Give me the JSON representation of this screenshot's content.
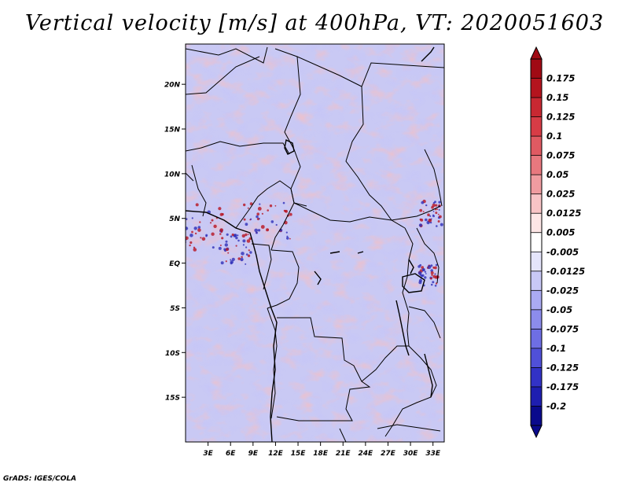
{
  "title": "Vertical velocity [m/s] at 400hPa, VT: 2020051603",
  "footer": "GrADS: IGES/COLA",
  "map": {
    "lat_labels": [
      "20N",
      "15N",
      "10N",
      "5N",
      "EQ",
      "5S",
      "10S",
      "15S"
    ],
    "lat_values": [
      20,
      15,
      10,
      5,
      0,
      -5,
      -10,
      -15
    ],
    "lon_labels": [
      "3E",
      "6E",
      "9E",
      "12E",
      "15E",
      "18E",
      "21E",
      "24E",
      "27E",
      "30E",
      "33E"
    ],
    "lon_values": [
      3,
      6,
      9,
      12,
      15,
      18,
      21,
      24,
      27,
      30,
      33
    ],
    "lon_range": [
      0,
      34.5
    ],
    "lat_range": [
      -20,
      24.5
    ],
    "field": "vertical velocity",
    "colors": {
      "positive": "#e8868c",
      "negative": "#8c8cf0",
      "neutral": "#ffffff"
    }
  },
  "colorbar": {
    "labels": [
      "0.175",
      "0.15",
      "0.125",
      "0.1",
      "0.075",
      "0.05",
      "0.025",
      "0.0125",
      "0.005",
      "-0.005",
      "-0.0125",
      "-0.025",
      "-0.05",
      "-0.075",
      "-0.1",
      "-0.125",
      "-0.175",
      "-0.2"
    ],
    "colors": [
      "#a00a14",
      "#b4141e",
      "#c82832",
      "#d73c46",
      "#e05a62",
      "#e8787e",
      "#f09ca0",
      "#f8c4c6",
      "#fde6e6",
      "#ffffff",
      "#e4e4fb",
      "#c8c8f6",
      "#aaaaf2",
      "#8c8cec",
      "#6e6ee4",
      "#5050d8",
      "#3232c6",
      "#1e1eb0",
      "#0a0a8c"
    ]
  }
}
